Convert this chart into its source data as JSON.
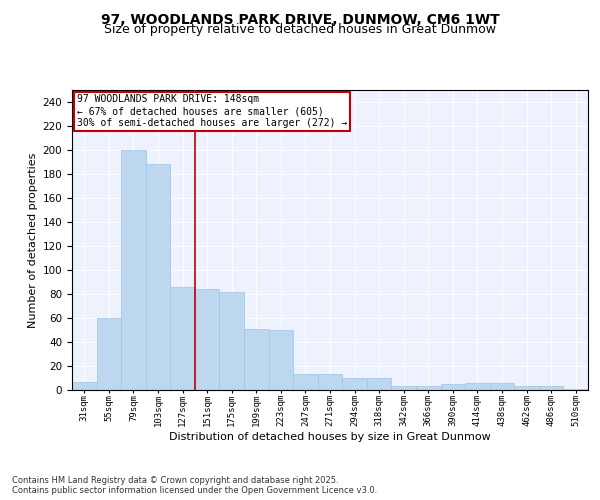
{
  "title": "97, WOODLANDS PARK DRIVE, DUNMOW, CM6 1WT",
  "subtitle": "Size of property relative to detached houses in Great Dunmow",
  "xlabel": "Distribution of detached houses by size in Great Dunmow",
  "ylabel": "Number of detached properties",
  "bar_labels": [
    "31sqm",
    "55sqm",
    "79sqm",
    "103sqm",
    "127sqm",
    "151sqm",
    "175sqm",
    "199sqm",
    "223sqm",
    "247sqm",
    "271sqm",
    "294sqm",
    "318sqm",
    "342sqm",
    "366sqm",
    "390sqm",
    "414sqm",
    "438sqm",
    "462sqm",
    "486sqm",
    "510sqm"
  ],
  "values": [
    7,
    60,
    200,
    188,
    86,
    84,
    82,
    51,
    50,
    13,
    13,
    10,
    10,
    3,
    3,
    5,
    6,
    6,
    3,
    3,
    1
  ],
  "bar_color": "#BDD7EE",
  "bar_edge_color": "#9DC3E6",
  "vline_index": 4.5,
  "vline_color": "#C00000",
  "annotation_text": "97 WOODLANDS PARK DRIVE: 148sqm\n← 67% of detached houses are smaller (605)\n30% of semi-detached houses are larger (272) →",
  "annotation_box_color": "#C00000",
  "ylim": [
    0,
    250
  ],
  "yticks": [
    0,
    20,
    40,
    60,
    80,
    100,
    120,
    140,
    160,
    180,
    200,
    220,
    240
  ],
  "background_color": "#EEF2FF",
  "grid_color": "#FFFFFF",
  "footer": "Contains HM Land Registry data © Crown copyright and database right 2025.\nContains public sector information licensed under the Open Government Licence v3.0.",
  "title_fontsize": 10,
  "subtitle_fontsize": 9,
  "xlabel_fontsize": 8,
  "ylabel_fontsize": 8
}
